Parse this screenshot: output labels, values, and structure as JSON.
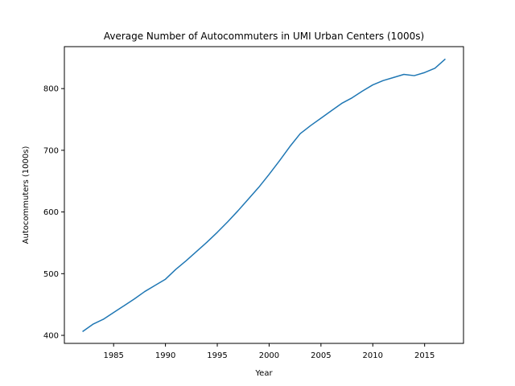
{
  "chart_data": {
    "type": "line",
    "title": "Average Number of Autocommuters in UMI Urban Centers (1000s)",
    "xlabel": "Year",
    "ylabel": "Autocommuters (1000s)",
    "xlim": [
      1980.25,
      2018.75
    ],
    "ylim": [
      387,
      868
    ],
    "xticks": [
      1985,
      1990,
      1995,
      2000,
      2005,
      2010,
      2015
    ],
    "yticks": [
      400,
      500,
      600,
      700,
      800
    ],
    "grid": false,
    "legend": "none",
    "series": [
      {
        "color": "#1f77b4",
        "x": [
          1982,
          1983,
          1984,
          1985,
          1986,
          1987,
          1988,
          1989,
          1990,
          1991,
          1992,
          1993,
          1994,
          1995,
          1996,
          1997,
          1998,
          1999,
          2000,
          2001,
          2002,
          2003,
          2004,
          2005,
          2006,
          2007,
          2008,
          2009,
          2010,
          2011,
          2012,
          2013,
          2014,
          2015,
          2016,
          2017
        ],
        "y": [
          406,
          418,
          426,
          437,
          448,
          459,
          471,
          481,
          491,
          507,
          521,
          536,
          551,
          567,
          584,
          602,
          621,
          640,
          661,
          683,
          706,
          727,
          740,
          752,
          764,
          776,
          785,
          796,
          806,
          813,
          818,
          823,
          821,
          826,
          833,
          848
        ]
      }
    ]
  }
}
